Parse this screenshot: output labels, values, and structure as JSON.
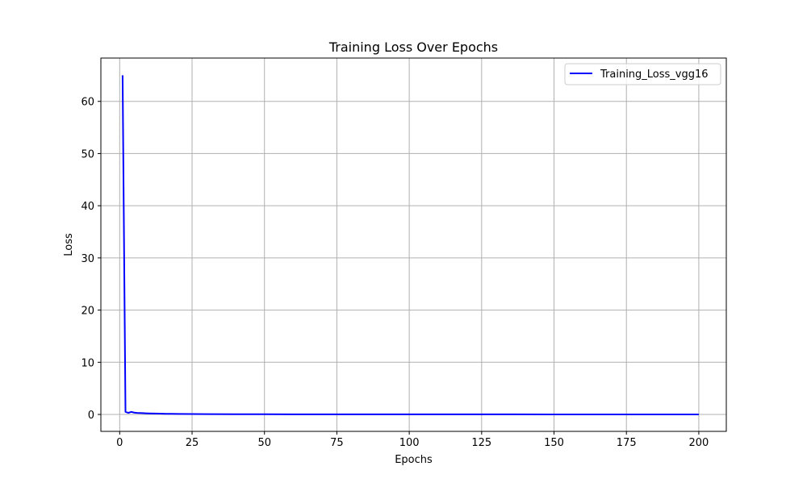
{
  "chart_data": {
    "type": "line",
    "title": "Training Loss Over Epochs",
    "xlabel": "Epochs",
    "ylabel": "Loss",
    "xlim": [
      -6.5,
      209.5
    ],
    "ylim": [
      -3.24,
      68.3
    ],
    "xticks": [
      0,
      25,
      50,
      75,
      100,
      125,
      150,
      175,
      200
    ],
    "yticks": [
      0,
      10,
      20,
      30,
      40,
      50,
      60
    ],
    "grid": true,
    "legend_position": "top-right",
    "series": [
      {
        "name": "Training_Loss_vgg16",
        "color": "#0000ff",
        "x": [
          1,
          2,
          3,
          4,
          5,
          6,
          7,
          8,
          9,
          10,
          12,
          14,
          16,
          18,
          20,
          25,
          30,
          40,
          50,
          60,
          75,
          100,
          125,
          150,
          175,
          200
        ],
        "y": [
          65.0,
          0.5,
          0.3,
          0.5,
          0.35,
          0.3,
          0.28,
          0.25,
          0.22,
          0.2,
          0.18,
          0.15,
          0.13,
          0.12,
          0.1,
          0.08,
          0.06,
          0.05,
          0.04,
          0.03,
          0.02,
          0.02,
          0.02,
          0.01,
          0.01,
          0.01
        ]
      }
    ]
  }
}
